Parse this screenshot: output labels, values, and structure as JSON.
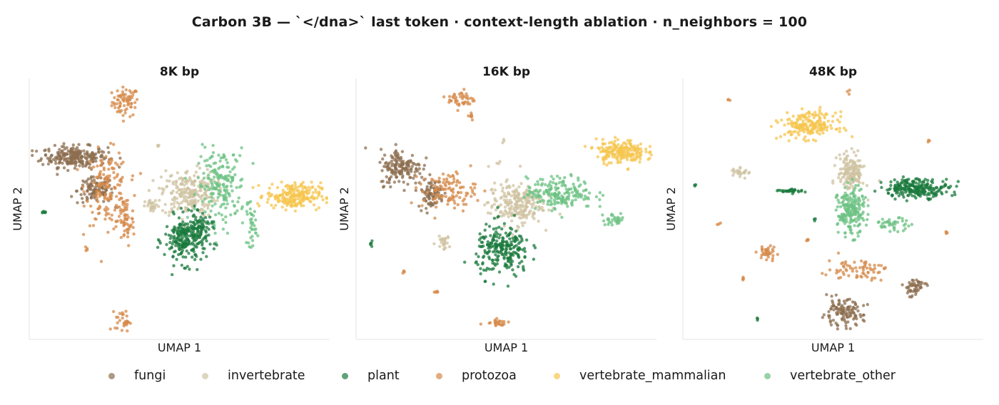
{
  "title": "Carbon 3B — `</dna>` last token  ·  context-length ablation  ·  n_neighbors = 100",
  "chart_data": {
    "type": "scatter",
    "title": "Carbon 3B — `</dna>` last token  ·  context-length ablation  ·  n_neighbors = 100",
    "xlabel": "UMAP 1",
    "ylabel": "UMAP 2",
    "ticks": "none",
    "grid": false,
    "legend": "bottom",
    "categories": [
      {
        "name": "fungi",
        "color": "#8c6d4f"
      },
      {
        "name": "invertebrate",
        "color": "#cfc3a2"
      },
      {
        "name": "plant",
        "color": "#1a7a3c"
      },
      {
        "name": "protozoa",
        "color": "#d6894a"
      },
      {
        "name": "vertebrate_mammalian",
        "color": "#f6c64f"
      },
      {
        "name": "vertebrate_other",
        "color": "#6cc183"
      }
    ],
    "panels": [
      {
        "title": "8K bp",
        "clusters": [
          {
            "cat": "protozoa",
            "cx": 0.32,
            "cy": 0.91,
            "sx": 0.022,
            "sy": 0.028,
            "n": 70
          },
          {
            "cat": "fungi",
            "cx": 0.15,
            "cy": 0.7,
            "sx": 0.055,
            "sy": 0.02,
            "n": 240
          },
          {
            "cat": "fungi",
            "cx": 0.22,
            "cy": 0.57,
            "sx": 0.03,
            "sy": 0.025,
            "n": 110
          },
          {
            "cat": "protozoa",
            "cx": 0.26,
            "cy": 0.58,
            "sx": 0.035,
            "sy": 0.07,
            "n": 150
          },
          {
            "cat": "protozoa",
            "cx": 0.32,
            "cy": 0.45,
            "sx": 0.015,
            "sy": 0.05,
            "n": 60
          },
          {
            "cat": "invertebrate",
            "cx": 0.53,
            "cy": 0.56,
            "sx": 0.045,
            "sy": 0.045,
            "n": 230
          },
          {
            "cat": "invertebrate",
            "cx": 0.41,
            "cy": 0.51,
            "sx": 0.012,
            "sy": 0.012,
            "n": 25
          },
          {
            "cat": "vertebrate_other",
            "cx": 0.64,
            "cy": 0.59,
            "sx": 0.04,
            "sy": 0.07,
            "n": 190
          },
          {
            "cat": "vertebrate_other",
            "cx": 0.74,
            "cy": 0.44,
            "sx": 0.008,
            "sy": 0.04,
            "n": 35
          },
          {
            "cat": "plant",
            "cx": 0.52,
            "cy": 0.38,
            "sx": 0.035,
            "sy": 0.045,
            "n": 230
          },
          {
            "cat": "plant",
            "cx": 0.57,
            "cy": 0.43,
            "sx": 0.02,
            "sy": 0.025,
            "n": 60
          },
          {
            "cat": "vertebrate_mammalian",
            "cx": 0.88,
            "cy": 0.55,
            "sx": 0.045,
            "sy": 0.025,
            "n": 220
          },
          {
            "cat": "protozoa",
            "cx": 0.31,
            "cy": 0.07,
            "sx": 0.012,
            "sy": 0.02,
            "n": 30
          },
          {
            "cat": "plant",
            "cx": 0.05,
            "cy": 0.49,
            "sx": 0.004,
            "sy": 0.005,
            "n": 6
          },
          {
            "cat": "protozoa",
            "cx": 0.19,
            "cy": 0.35,
            "sx": 0.004,
            "sy": 0.004,
            "n": 4
          },
          {
            "cat": "invertebrate",
            "cx": 0.43,
            "cy": 0.74,
            "sx": 0.003,
            "sy": 0.006,
            "n": 4
          }
        ]
      },
      {
        "title": "16K bp",
        "clusters": [
          {
            "cat": "protozoa",
            "cx": 0.35,
            "cy": 0.92,
            "sx": 0.022,
            "sy": 0.018,
            "n": 45
          },
          {
            "cat": "protozoa",
            "cx": 0.38,
            "cy": 0.86,
            "sx": 0.006,
            "sy": 0.01,
            "n": 8
          },
          {
            "cat": "fungi",
            "cx": 0.15,
            "cy": 0.66,
            "sx": 0.035,
            "sy": 0.035,
            "n": 160
          },
          {
            "cat": "fungi",
            "cx": 0.25,
            "cy": 0.56,
            "sx": 0.022,
            "sy": 0.028,
            "n": 80
          },
          {
            "cat": "protozoa",
            "cx": 0.31,
            "cy": 0.57,
            "sx": 0.045,
            "sy": 0.035,
            "n": 110
          },
          {
            "cat": "invertebrate",
            "cx": 0.53,
            "cy": 0.52,
            "sx": 0.045,
            "sy": 0.04,
            "n": 230
          },
          {
            "cat": "vertebrate_other",
            "cx": 0.68,
            "cy": 0.56,
            "sx": 0.055,
            "sy": 0.03,
            "n": 190
          },
          {
            "cat": "vertebrate_other",
            "cx": 0.86,
            "cy": 0.46,
            "sx": 0.02,
            "sy": 0.012,
            "n": 30
          },
          {
            "cat": "vertebrate_mammalian",
            "cx": 0.88,
            "cy": 0.72,
            "sx": 0.04,
            "sy": 0.022,
            "n": 200
          },
          {
            "cat": "plant",
            "cx": 0.49,
            "cy": 0.34,
            "sx": 0.045,
            "sy": 0.05,
            "n": 240
          },
          {
            "cat": "invertebrate",
            "cx": 0.29,
            "cy": 0.37,
            "sx": 0.012,
            "sy": 0.012,
            "n": 25
          },
          {
            "cat": "protozoa",
            "cx": 0.47,
            "cy": 0.07,
            "sx": 0.02,
            "sy": 0.01,
            "n": 25
          },
          {
            "cat": "plant",
            "cx": 0.05,
            "cy": 0.37,
            "sx": 0.003,
            "sy": 0.006,
            "n": 5
          },
          {
            "cat": "protozoa",
            "cx": 0.16,
            "cy": 0.26,
            "sx": 0.003,
            "sy": 0.004,
            "n": 4
          },
          {
            "cat": "protozoa",
            "cx": 0.27,
            "cy": 0.18,
            "sx": 0.005,
            "sy": 0.004,
            "n": 5
          },
          {
            "cat": "invertebrate",
            "cx": 0.47,
            "cy": 0.68,
            "sx": 0.003,
            "sy": 0.003,
            "n": 3
          },
          {
            "cat": "invertebrate",
            "cx": 0.49,
            "cy": 0.76,
            "sx": 0.003,
            "sy": 0.004,
            "n": 3
          }
        ]
      },
      {
        "title": "48K bp",
        "clusters": [
          {
            "cat": "vertebrate_mammalian",
            "cx": 0.42,
            "cy": 0.82,
            "sx": 0.045,
            "sy": 0.025,
            "n": 200
          },
          {
            "cat": "invertebrate",
            "cx": 0.56,
            "cy": 0.64,
            "sx": 0.022,
            "sy": 0.035,
            "n": 160
          },
          {
            "cat": "vertebrate_other",
            "cx": 0.56,
            "cy": 0.49,
            "sx": 0.022,
            "sy": 0.045,
            "n": 200
          },
          {
            "cat": "vertebrate_other",
            "cx": 0.7,
            "cy": 0.44,
            "sx": 0.03,
            "sy": 0.012,
            "n": 40
          },
          {
            "cat": "plant",
            "cx": 0.78,
            "cy": 0.58,
            "sx": 0.055,
            "sy": 0.018,
            "n": 230
          },
          {
            "cat": "plant",
            "cx": 0.36,
            "cy": 0.57,
            "sx": 0.025,
            "sy": 0.004,
            "n": 30
          },
          {
            "cat": "invertebrate",
            "cx": 0.19,
            "cy": 0.64,
            "sx": 0.015,
            "sy": 0.01,
            "n": 25
          },
          {
            "cat": "protozoa",
            "cx": 0.28,
            "cy": 0.33,
            "sx": 0.015,
            "sy": 0.015,
            "n": 35
          },
          {
            "cat": "protozoa",
            "cx": 0.58,
            "cy": 0.27,
            "sx": 0.05,
            "sy": 0.02,
            "n": 70
          },
          {
            "cat": "fungi",
            "cx": 0.77,
            "cy": 0.2,
            "sx": 0.02,
            "sy": 0.018,
            "n": 50
          },
          {
            "cat": "fungi",
            "cx": 0.53,
            "cy": 0.1,
            "sx": 0.035,
            "sy": 0.025,
            "n": 120
          },
          {
            "cat": "protozoa",
            "cx": 0.15,
            "cy": 0.92,
            "sx": 0.004,
            "sy": 0.004,
            "n": 3
          },
          {
            "cat": "protozoa",
            "cx": 0.55,
            "cy": 0.95,
            "sx": 0.003,
            "sy": 0.004,
            "n": 3
          },
          {
            "cat": "protozoa",
            "cx": 0.82,
            "cy": 0.76,
            "sx": 0.003,
            "sy": 0.003,
            "n": 3
          },
          {
            "cat": "protozoa",
            "cx": 0.88,
            "cy": 0.41,
            "sx": 0.004,
            "sy": 0.004,
            "n": 4
          },
          {
            "cat": "protozoa",
            "cx": 0.12,
            "cy": 0.44,
            "sx": 0.004,
            "sy": 0.004,
            "n": 3
          },
          {
            "cat": "protozoa",
            "cx": 0.2,
            "cy": 0.23,
            "sx": 0.004,
            "sy": 0.004,
            "n": 4
          },
          {
            "cat": "protozoa",
            "cx": 0.41,
            "cy": 0.38,
            "sx": 0.004,
            "sy": 0.004,
            "n": 4
          },
          {
            "cat": "plant",
            "cx": 0.04,
            "cy": 0.59,
            "sx": 0.002,
            "sy": 0.003,
            "n": 3
          },
          {
            "cat": "plant",
            "cx": 0.25,
            "cy": 0.08,
            "sx": 0.002,
            "sy": 0.004,
            "n": 3
          },
          {
            "cat": "plant",
            "cx": 0.44,
            "cy": 0.46,
            "sx": 0.003,
            "sy": 0.003,
            "n": 3
          }
        ]
      }
    ]
  }
}
